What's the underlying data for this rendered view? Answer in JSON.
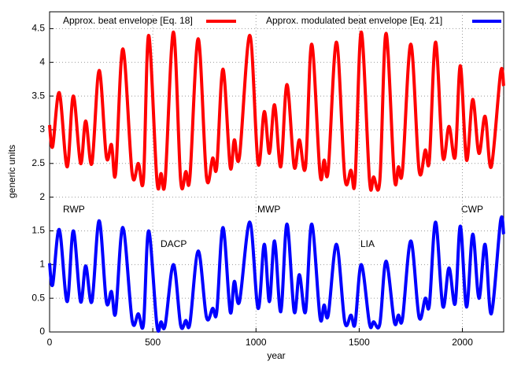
{
  "chart_data": {
    "type": "line",
    "x_label": "year",
    "y_label": "generic units",
    "x": [
      0,
      15,
      47,
      85,
      115,
      150,
      175,
      205,
      240,
      275,
      300,
      320,
      355,
      400,
      430,
      455,
      480,
      520,
      540,
      560,
      600,
      635,
      660,
      680,
      720,
      760,
      790,
      810,
      840,
      875,
      895,
      920,
      970,
      1010,
      1040,
      1065,
      1090,
      1120,
      1150,
      1185,
      1210,
      1240,
      1270,
      1310,
      1330,
      1350,
      1390,
      1430,
      1460,
      1480,
      1510,
      1550,
      1570,
      1600,
      1630,
      1670,
      1690,
      1710,
      1750,
      1790,
      1820,
      1840,
      1870,
      1905,
      1935,
      1965,
      1990,
      2020,
      2050,
      2080,
      2110,
      2140,
      2185,
      2200
    ],
    "series": [
      {
        "name": "Approx. beat envelope [Eq. 18]",
        "color": "#ff0000",
        "values": [
          3.07,
          2.75,
          3.55,
          2.45,
          3.5,
          2.5,
          3.13,
          2.5,
          3.88,
          2.6,
          2.78,
          2.35,
          4.2,
          2.35,
          2.5,
          2.27,
          4.4,
          2.25,
          2.35,
          2.25,
          4.45,
          2.25,
          2.38,
          2.3,
          4.35,
          2.3,
          2.58,
          2.45,
          3.9,
          2.45,
          2.85,
          2.6,
          4.4,
          2.5,
          3.27,
          2.65,
          3.37,
          2.45,
          3.67,
          2.45,
          2.85,
          2.45,
          4.27,
          2.35,
          2.55,
          2.4,
          4.3,
          2.3,
          2.4,
          2.25,
          4.45,
          2.25,
          2.3,
          2.25,
          4.43,
          2.3,
          2.45,
          2.4,
          4.27,
          2.4,
          2.7,
          2.55,
          4.3,
          2.6,
          3.05,
          2.6,
          3.95,
          2.55,
          3.45,
          2.65,
          3.2,
          2.45,
          3.85,
          3.65
        ]
      },
      {
        "name": "Approx. modulated beat envelope [Eq. 21]",
        "color": "#0000ff",
        "values": [
          1.02,
          0.7,
          1.52,
          0.45,
          1.5,
          0.45,
          0.98,
          0.45,
          1.65,
          0.45,
          0.6,
          0.28,
          1.55,
          0.17,
          0.27,
          0.12,
          1.5,
          0.1,
          0.15,
          0.1,
          1.0,
          0.1,
          0.17,
          0.13,
          1.2,
          0.22,
          0.35,
          0.3,
          1.55,
          0.3,
          0.75,
          0.45,
          1.63,
          0.35,
          1.3,
          0.45,
          1.35,
          0.3,
          1.6,
          0.3,
          0.85,
          0.3,
          1.6,
          0.22,
          0.4,
          0.25,
          1.3,
          0.15,
          0.25,
          0.12,
          1.0,
          0.12,
          0.15,
          0.12,
          1.05,
          0.15,
          0.25,
          0.2,
          1.35,
          0.22,
          0.5,
          0.4,
          1.63,
          0.38,
          0.95,
          0.42,
          1.57,
          0.37,
          1.45,
          0.5,
          1.3,
          0.27,
          1.65,
          1.45
        ]
      }
    ],
    "annotations": [
      "RWP",
      "DACP",
      "MWP",
      "LIA",
      "CWP"
    ],
    "xlim": [
      0,
      2200
    ],
    "ylim": [
      0,
      4.75
    ],
    "xticks": [
      0,
      500,
      1000,
      1500,
      2000
    ],
    "yticks": [
      0,
      0.5,
      1,
      1.5,
      2,
      2.5,
      3,
      3.5,
      4,
      4.5
    ],
    "grid": true
  }
}
